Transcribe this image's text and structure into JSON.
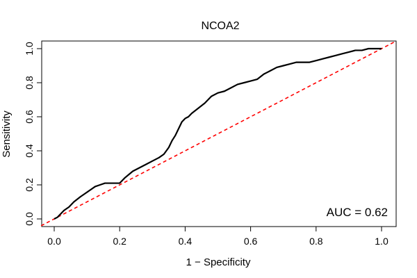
{
  "chart_data": {
    "type": "line",
    "title": "NCOA2",
    "xlabel": "1 − Specificity",
    "ylabel": "Sensitivity",
    "xlim": [
      0,
      1
    ],
    "ylim": [
      0,
      1
    ],
    "x_ticks": [
      "0.0",
      "0.2",
      "0.4",
      "0.6",
      "0.8",
      "1.0"
    ],
    "y_ticks": [
      "0.0",
      "0.2",
      "0.4",
      "0.6",
      "0.8",
      "1.0"
    ],
    "annotation": "AUC = 0.62",
    "grid": false,
    "series": [
      {
        "role": "roc-curve",
        "color": "#000000",
        "x": [
          0.0,
          0.01,
          0.02,
          0.03,
          0.045,
          0.06,
          0.08,
          0.095,
          0.11,
          0.125,
          0.14,
          0.155,
          0.17,
          0.185,
          0.2,
          0.215,
          0.24,
          0.26,
          0.28,
          0.3,
          0.32,
          0.335,
          0.35,
          0.36,
          0.37,
          0.38,
          0.39,
          0.4,
          0.41,
          0.42,
          0.44,
          0.46,
          0.48,
          0.5,
          0.52,
          0.54,
          0.56,
          0.58,
          0.6,
          0.62,
          0.64,
          0.66,
          0.68,
          0.7,
          0.72,
          0.74,
          0.76,
          0.78,
          0.8,
          0.82,
          0.84,
          0.86,
          0.88,
          0.9,
          0.92,
          0.94,
          0.96,
          0.98,
          1.0
        ],
        "y": [
          0.0,
          0.01,
          0.03,
          0.05,
          0.07,
          0.1,
          0.13,
          0.15,
          0.17,
          0.19,
          0.2,
          0.21,
          0.21,
          0.21,
          0.21,
          0.24,
          0.28,
          0.3,
          0.32,
          0.34,
          0.36,
          0.38,
          0.42,
          0.46,
          0.49,
          0.53,
          0.57,
          0.59,
          0.6,
          0.62,
          0.65,
          0.68,
          0.72,
          0.74,
          0.75,
          0.77,
          0.79,
          0.8,
          0.81,
          0.82,
          0.85,
          0.87,
          0.89,
          0.9,
          0.91,
          0.92,
          0.92,
          0.92,
          0.93,
          0.94,
          0.95,
          0.96,
          0.97,
          0.98,
          0.99,
          0.99,
          1.0,
          1.0,
          1.0
        ]
      },
      {
        "role": "chance-diagonal",
        "color": "#ff0000",
        "style": "dashed",
        "x": [
          0,
          1
        ],
        "y": [
          0,
          1
        ]
      }
    ]
  }
}
